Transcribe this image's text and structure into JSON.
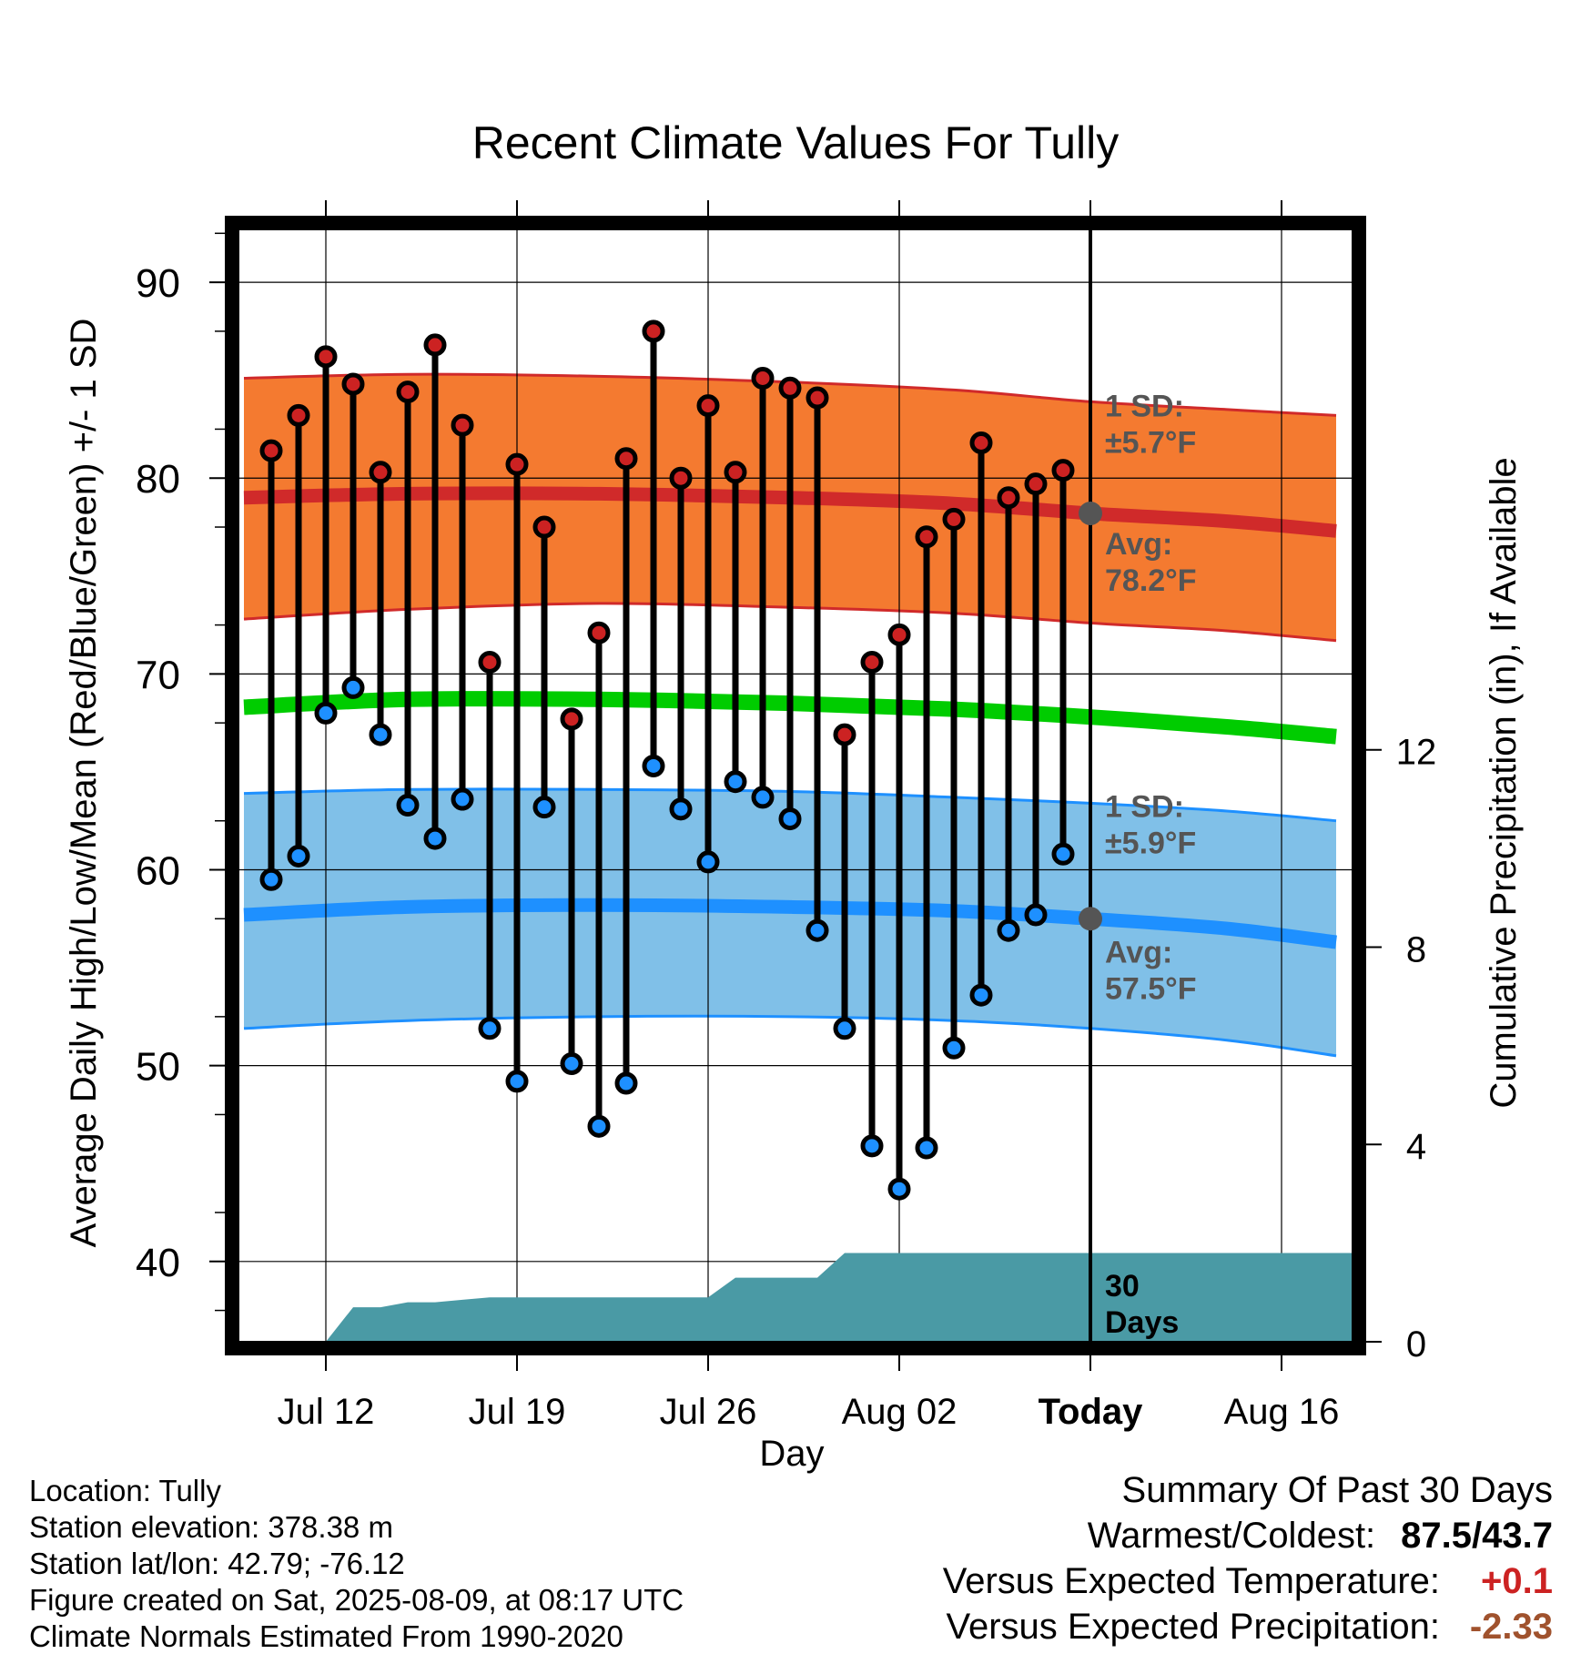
{
  "chart_data": {
    "type": "line",
    "title": "Recent Climate Values For Tully",
    "xlabel": "Day",
    "ylabel": "Average Daily High/Low/Mean (Red/Blue/Green) +/- 1 SD",
    "ylabel_right": "Cumulative Precipitation (in), If Available",
    "ylim": [
      35.9,
      92.7
    ],
    "y_ticks": [
      40,
      50,
      60,
      70,
      80,
      90
    ],
    "ylim_right": [
      0,
      22.55
    ],
    "y_ticks_right": [
      0,
      4,
      8,
      12
    ],
    "x_tick_labels": [
      {
        "day": 12,
        "label": "Jul 12"
      },
      {
        "day": 19,
        "label": "Jul 19"
      },
      {
        "day": 26,
        "label": "Jul 26"
      },
      {
        "day": 33,
        "label": "Aug 02"
      },
      {
        "day": 40,
        "label": "Today"
      },
      {
        "day": 47,
        "label": "Aug 16"
      }
    ],
    "xlim": [
      8.8,
      49.6
    ],
    "daily_days": [
      10,
      11,
      12,
      13,
      14,
      15,
      16,
      17,
      18,
      19,
      20,
      21,
      22,
      23,
      24,
      25,
      26,
      27,
      28,
      29,
      30,
      31,
      32,
      33,
      34,
      35,
      36,
      37,
      38,
      39
    ],
    "daily_high": [
      81.4,
      83.2,
      86.2,
      84.8,
      80.3,
      84.4,
      86.8,
      82.7,
      70.6,
      80.7,
      77.5,
      67.7,
      72.1,
      81.0,
      87.5,
      80.0,
      83.7,
      80.3,
      85.1,
      84.6,
      84.1,
      66.9,
      70.6,
      72.0,
      77.0,
      77.9,
      81.8,
      79.0,
      79.7,
      80.4
    ],
    "daily_low": [
      59.5,
      60.7,
      68.0,
      69.3,
      66.9,
      63.3,
      61.6,
      63.6,
      51.9,
      49.2,
      63.2,
      50.1,
      46.9,
      49.1,
      65.3,
      63.1,
      60.4,
      64.5,
      63.7,
      62.6,
      56.9,
      51.9,
      45.9,
      43.7,
      45.8,
      50.9,
      53.6,
      56.9,
      57.7,
      60.8
    ],
    "normal_days": [
      9,
      15,
      22,
      29,
      35,
      40,
      45,
      49
    ],
    "normal_high": [
      79.0,
      79.2,
      79.2,
      79.0,
      78.7,
      78.2,
      77.8,
      77.3
    ],
    "normal_high_plus_sd": [
      85.1,
      85.3,
      85.2,
      84.9,
      84.5,
      83.9,
      83.5,
      83.2
    ],
    "normal_high_minus_sd": [
      72.8,
      73.3,
      73.6,
      73.4,
      73.1,
      72.6,
      72.2,
      71.7
    ],
    "normal_mean": [
      68.3,
      68.7,
      68.7,
      68.5,
      68.2,
      67.8,
      67.3,
      66.8
    ],
    "normal_low": [
      57.7,
      58.1,
      58.2,
      58.1,
      57.9,
      57.5,
      57.0,
      56.3
    ],
    "normal_low_plus_sd": [
      63.9,
      64.1,
      64.1,
      64.0,
      63.7,
      63.4,
      63.0,
      62.5
    ],
    "normal_low_minus_sd": [
      51.9,
      52.3,
      52.5,
      52.5,
      52.3,
      51.9,
      51.3,
      50.5
    ],
    "precip_days": [
      11,
      12,
      13,
      14,
      15,
      16,
      17,
      18,
      19,
      26,
      27,
      28,
      29,
      30,
      31,
      32,
      40,
      49.6
    ],
    "precip_cum": [
      0,
      0,
      0.7,
      0.7,
      0.8,
      0.8,
      0.85,
      0.9,
      0.9,
      0.9,
      1.3,
      1.3,
      1.3,
      1.3,
      1.8,
      1.8,
      1.8,
      1.8
    ],
    "annotations": {
      "high_sd": [
        "1 SD:",
        "±5.7°F"
      ],
      "high_avg": [
        "Avg:",
        "78.2°F"
      ],
      "low_sd": [
        "1 SD:",
        "±5.9°F"
      ],
      "low_avg": [
        "Avg:",
        "57.5°F"
      ],
      "window": [
        "30",
        "Days"
      ]
    },
    "colors": {
      "high_band": "#f47a30",
      "high_line": "#d02a2a",
      "low_band": "#80c0e8",
      "low_line": "#1e90ff",
      "mean_line": "#00cc00",
      "precip_fill": "#4a9aa5",
      "high_dot": "#cc2222",
      "low_dot": "#1e90ff",
      "annotation_text": "#555555"
    },
    "grid": true
  },
  "info": {
    "location": "Location: Tully",
    "elevation": "Station elevation: 378.38 m",
    "latlon": "Station lat/lon: 42.79; -76.12",
    "created": "Figure created on Sat, 2025-08-09, at 08:17 UTC",
    "normals": "Climate Normals Estimated From 1990-2020"
  },
  "summary": {
    "heading": "Summary Of Past 30 Days",
    "warmest_label": "Warmest/Coldest:",
    "warmest_value": "87.5/43.7",
    "temp_label": "Versus Expected Temperature:",
    "temp_value": "+0.1",
    "temp_color": "#cc2222",
    "precip_label": "Versus Expected Precipitation:",
    "precip_value": "-2.33",
    "precip_color": "#a0522d"
  }
}
